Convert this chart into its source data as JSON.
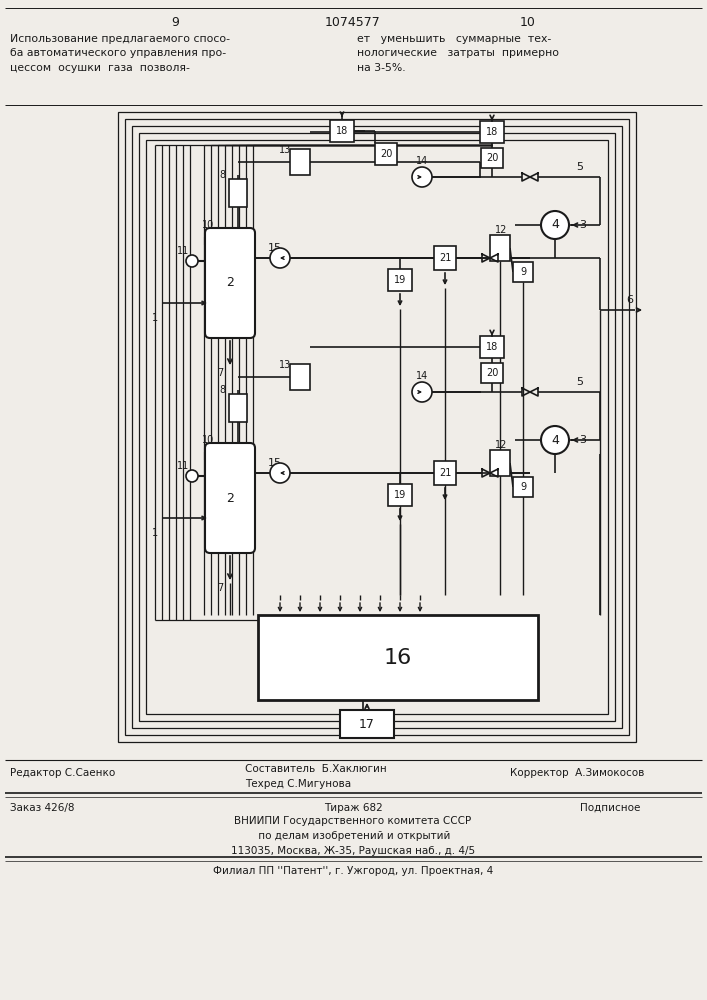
{
  "page_num_left": "9",
  "page_num_center": "1074577",
  "page_num_right": "10",
  "header_text_left": "Использование предлагаемого спосо-\nба автоматического управления про-\nцессом  осушки  газа  позволя-",
  "header_text_right": "ет   уменьшить   суммарные  тех-\nнологические   затраты  примерно\nна 3-5%.",
  "footer_editor": "Редактор С.Саенко",
  "footer_composer": "Составитель  Б.Хаклюгин\nТехред С.Мигунова",
  "footer_corrector": "Корректор  А.Зимокосов",
  "footer_order": "Заказ 426/8",
  "footer_circulation": "Тираж 682",
  "footer_subscription": "Подписное",
  "footer_vniip": "ВНИИПИ Государственного комитета СССР\n по делам изобретений и открытий\n113035, Москва, Ж-35, Раушская наб., д. 4/5",
  "footer_filial": "Филиал ПП ''Патент'', г. Ужгород, ул. Проектная, 4",
  "bg_color": "#f0ede8",
  "line_color": "#1a1a1a"
}
